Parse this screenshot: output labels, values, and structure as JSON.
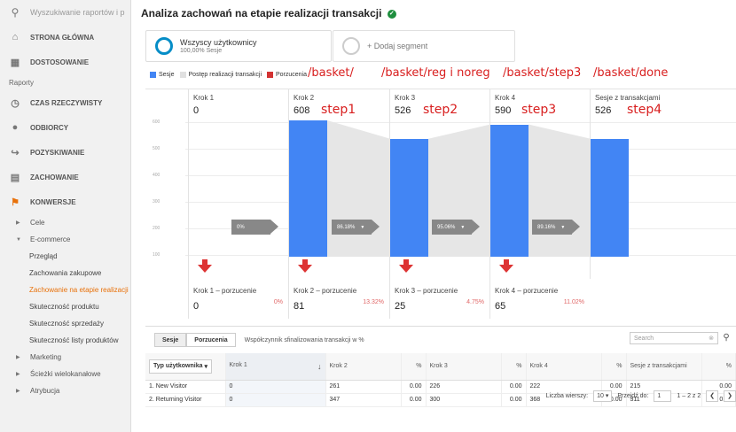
{
  "sidebar": {
    "search_placeholder": "Wyszukiwanie raportów i p",
    "home": "STRONA GŁÓWNA",
    "customize": "DOSTOSOWANIE",
    "section_label": "Raporty",
    "items": [
      "CZAS RZECZYWISTY",
      "ODBIORCY",
      "POZYSKIWANIE",
      "ZACHOWANIE",
      "KONWERSJE"
    ],
    "sub_goals": "Cele",
    "sub_ecommerce": "E-commerce",
    "leaves": [
      "Przegląd",
      "Zachowania zakupowe",
      "Zachowanie na etapie realizacji",
      "Skuteczność produktu",
      "Skuteczność sprzedaży",
      "Skuteczność listy produktów"
    ],
    "sub_marketing": "Marketing",
    "sub_multichannel": "Ścieżki wielokanałowe",
    "sub_attribution": "Atrybucja"
  },
  "header": {
    "title": "Analiza zachowań na etapie realizacji transakcji"
  },
  "segments": {
    "seg1_name": "Wszyscy użytkownicy",
    "seg1_sub": "100,00% Sesje",
    "seg2_label": "+ Dodaj segment"
  },
  "legend": {
    "sessions": "Sesje",
    "progress": "Postęp realizacji transakcji",
    "dropoff": "Porzucenia",
    "colors": {
      "sessions": "#4285f4",
      "progress": "#e0e0e0",
      "dropoff": "#d33333"
    }
  },
  "annotations": {
    "urls": [
      "/basket/",
      "/basket/reg i noreg",
      "/basket/step3",
      "/basket/done"
    ],
    "steps": [
      "step1",
      "step2",
      "step3",
      "step4"
    ]
  },
  "funnel": {
    "y_ticks": [
      "600",
      "500",
      "400",
      "300",
      "200",
      "100",
      "0"
    ],
    "steps": [
      {
        "label": "Krok 1",
        "value": "0"
      },
      {
        "label": "Krok 2",
        "value": "608"
      },
      {
        "label": "Krok 3",
        "value": "526"
      },
      {
        "label": "Krok 4",
        "value": "590"
      },
      {
        "label": "Sesje z transakcjami",
        "value": "526"
      }
    ],
    "bar_values": [
      0,
      608,
      526,
      590,
      526
    ],
    "y_max": 650,
    "flags": [
      "0%",
      "86.18%",
      "95.06%",
      "89.16%"
    ],
    "dropoffs": [
      {
        "label": "Krok 1 – porzucenie",
        "value": "0",
        "pct": "0%"
      },
      {
        "label": "Krok 2 – porzucenie",
        "value": "81",
        "pct": "13.32%"
      },
      {
        "label": "Krok 3 – porzucenie",
        "value": "25",
        "pct": "4.75%"
      },
      {
        "label": "Krok 4 – porzucenie",
        "value": "65",
        "pct": "11.02%"
      }
    ]
  },
  "table": {
    "btn_sessions": "Sesje",
    "btn_abandon": "Porzucenia",
    "metric_label": "Współczynnik sfinalizowania transakcji w %",
    "search_placeholder": "Search",
    "dim_dropdown": "Typ użytkownika",
    "headers": [
      "Krok 1",
      "%",
      "Krok 2",
      "%",
      "Krok 3",
      "%",
      "Krok 4",
      "%",
      "Sesje z transakcjami",
      "%"
    ],
    "rows": [
      {
        "idx": "1.",
        "name": "New Visitor",
        "cells": [
          "0",
          "",
          "261",
          "0.00",
          "226",
          "0.00",
          "222",
          "0.00",
          "215",
          "0.00"
        ]
      },
      {
        "idx": "2.",
        "name": "Returning Visitor",
        "cells": [
          "0",
          "",
          "347",
          "0.00",
          "300",
          "0.00",
          "368",
          "0.00",
          "311",
          "0.00"
        ]
      }
    ],
    "rows_label": "Liczba wierszy:",
    "rows_value": "10",
    "goto_label": "Przejdź do:",
    "goto_value": "1",
    "range": "1 – 2 z 2"
  }
}
